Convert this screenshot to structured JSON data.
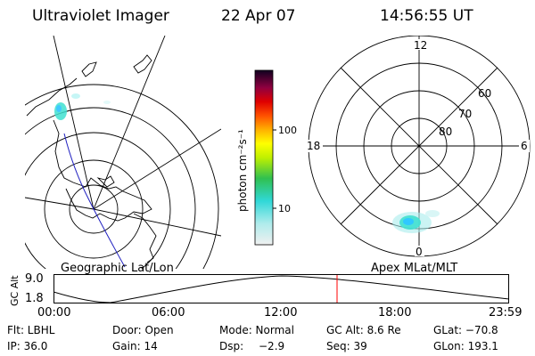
{
  "header": {
    "title": "Ultraviolet Imager",
    "date": "22 Apr 07",
    "time": "14:56:55 UT"
  },
  "left_panel": {
    "caption": "Geographic Lat/Lon"
  },
  "right_panel": {
    "caption": "Apex MLat/MLT",
    "mlt_labels": {
      "top": "12",
      "left": "18",
      "right": "6",
      "bottom": "0"
    },
    "lat_labels": [
      "60",
      "70",
      "80"
    ]
  },
  "colorbar": {
    "unit_label": "photon cm⁻²s⁻¹",
    "scale": "log",
    "ticks": [
      "100",
      "10"
    ]
  },
  "timeline": {
    "y_axis_label": "GC Alt",
    "y_ticks": [
      "9.0",
      "1.8"
    ],
    "x_ticks": [
      "00:00",
      "06:00",
      "12:00",
      "18:00",
      "23:59"
    ],
    "current_time_marker": "14:56:55",
    "marker_color": "#ff0000"
  },
  "info": {
    "flt": "Flt: LBHL",
    "door": "Door: Open",
    "mode": "Mode: Normal",
    "gc_alt": "GC Alt: 8.6 Re",
    "glat": "GLat: −70.8",
    "ip": "IP: 36.0",
    "gain": "Gain: 14",
    "dsp_label": "Dsp:",
    "dsp_value": "−2.9",
    "seq": "Seq: 39",
    "glon": "GLon: 193.1"
  },
  "colors": {
    "background": "#ffffff",
    "foreground": "#000000",
    "aurora": "#40e0d0"
  }
}
